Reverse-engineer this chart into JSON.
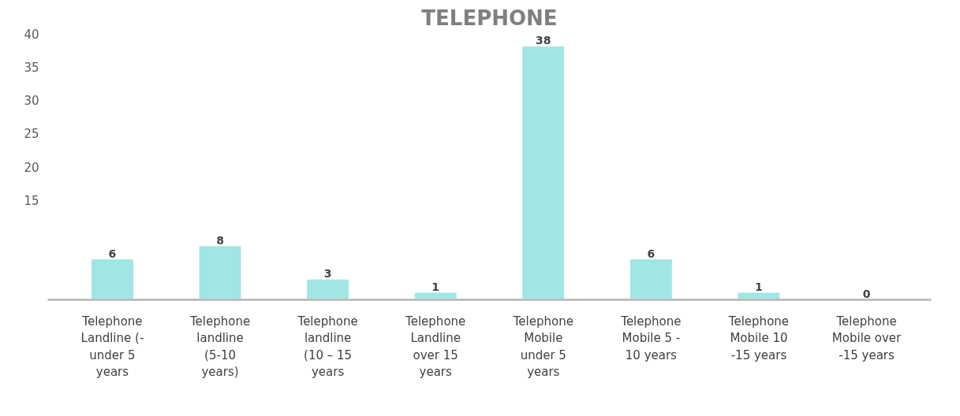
{
  "chart_data": {
    "type": "bar",
    "title": "TELEPHONE",
    "categories": [
      "Telephone Landline (- under 5 years",
      "Telephone landline (5-10 years)",
      "Telephone landline (10 – 15 years",
      "Telephone Landline over 15 years",
      "Telephone Mobile under 5 years",
      "Telephone Mobile 5 - 10 years",
      "Telephone Mobile 10 -15 years",
      "Telephone Mobile over -15 years"
    ],
    "values": [
      6,
      8,
      3,
      1,
      38,
      6,
      1,
      0
    ],
    "color": "#a0e6e4",
    "data_labels": true,
    "ylim": [
      0,
      40
    ],
    "yticks": [
      15,
      20,
      25,
      30,
      35,
      40
    ],
    "grid": false
  }
}
